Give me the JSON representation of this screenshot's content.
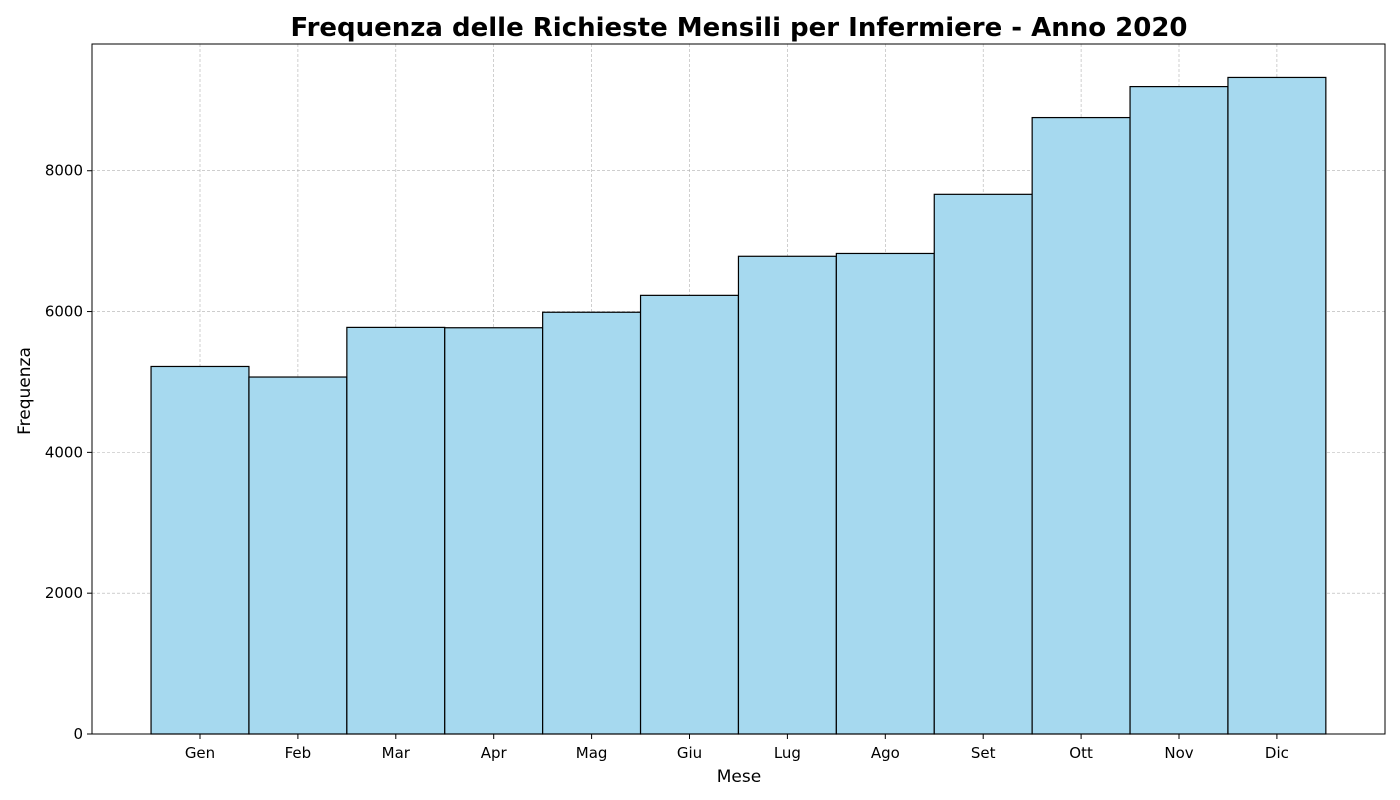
{
  "chart_data": {
    "type": "bar",
    "title": "Frequenza delle Richieste Mensili per Infermiere - Anno 2020",
    "xlabel": "Mese",
    "ylabel": "Frequenza",
    "categories": [
      "Gen",
      "Feb",
      "Mar",
      "Apr",
      "Mag",
      "Giu",
      "Lug",
      "Ago",
      "Set",
      "Ott",
      "Nov",
      "Dic"
    ],
    "values": [
      5220,
      5070,
      5775,
      5770,
      5990,
      6230,
      6785,
      6825,
      7665,
      8755,
      9195,
      9325
    ],
    "ylim": [
      0,
      9800
    ],
    "yticks": [
      "0",
      "2000",
      "4000",
      "6000",
      "8000"
    ],
    "grid": true,
    "bar_color": "#a6d9ef",
    "bar_edge_color": "#000000"
  }
}
